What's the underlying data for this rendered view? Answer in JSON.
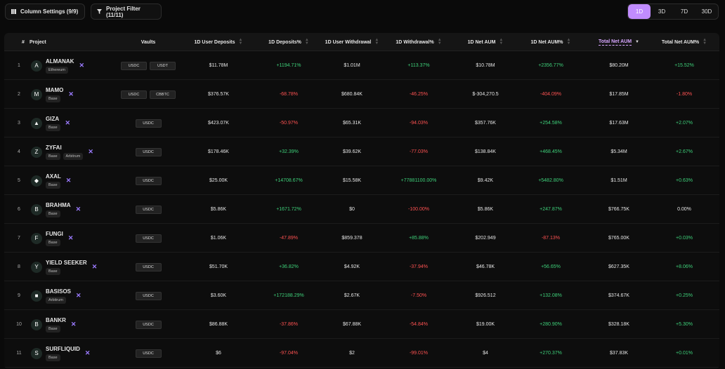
{
  "toolbar": {
    "column_settings_label": "Column Settings (9/9)",
    "project_filter_label": "Project Filter (11/11)"
  },
  "timeframes": [
    {
      "label": "1D",
      "active": true
    },
    {
      "label": "3D",
      "active": false
    },
    {
      "label": "7D",
      "active": false
    },
    {
      "label": "30D",
      "active": false
    }
  ],
  "columns": [
    "#",
    "Project",
    "Vaults",
    "1D User Deposits",
    "1D Deposits%",
    "1D User Withdrawal",
    "1D Withdrawal%",
    "1D Net AUM",
    "1D Net AUM%",
    "Total Net AUM",
    "Total Net AUM%"
  ],
  "rows": [
    {
      "n": "1",
      "name": "ALMANAK",
      "chains": [
        "Ethereum"
      ],
      "vaults": [
        "USDC",
        "USDT"
      ],
      "dep": "$11.78M",
      "depp": "+1194.71%",
      "wd": "$1.01M",
      "wdp": "+113.37%",
      "net": "$10.78M",
      "netp": "+2356.77%",
      "tot": "$80.20M",
      "totp": "+15.52%",
      "logo": "A"
    },
    {
      "n": "2",
      "name": "MAMO",
      "chains": [
        "Base"
      ],
      "vaults": [
        "USDC",
        "CBBTC"
      ],
      "dep": "$376.57K",
      "depp": "-68.78%",
      "wd": "$680.84K",
      "wdp": "-46.25%",
      "net": "$-304,270.5",
      "netp": "-404.09%",
      "tot": "$17.85M",
      "totp": "-1.80%",
      "logo": "M"
    },
    {
      "n": "3",
      "name": "GIZA",
      "chains": [
        "Base"
      ],
      "vaults": [
        "USDC"
      ],
      "dep": "$423.07K",
      "depp": "-50.97%",
      "wd": "$65.31K",
      "wdp": "-94.03%",
      "net": "$357.76K",
      "netp": "+254.58%",
      "tot": "$17.63M",
      "totp": "+2.07%",
      "logo": "▲"
    },
    {
      "n": "4",
      "name": "ZYFAI",
      "chains": [
        "Base",
        "Arbitrum"
      ],
      "vaults": [
        "USDC"
      ],
      "dep": "$178.46K",
      "depp": "+32.39%",
      "wd": "$39.62K",
      "wdp": "-77.03%",
      "net": "$138.84K",
      "netp": "+468.45%",
      "tot": "$5.34M",
      "totp": "+2.67%",
      "logo": "Z"
    },
    {
      "n": "5",
      "name": "AXAL",
      "chains": [
        "Base"
      ],
      "vaults": [
        "USDC"
      ],
      "dep": "$25.00K",
      "depp": "+14708.67%",
      "wd": "$15.58K",
      "wdp": "+77881100.00%",
      "net": "$9.42K",
      "netp": "+5482.80%",
      "tot": "$1.51M",
      "totp": "+0.63%",
      "logo": "◆"
    },
    {
      "n": "6",
      "name": "BRAHMA",
      "chains": [
        "Base"
      ],
      "vaults": [
        "USDC"
      ],
      "dep": "$5.86K",
      "depp": "+1671.72%",
      "wd": "$0",
      "wdp": "-100.00%",
      "net": "$5.86K",
      "netp": "+247.87%",
      "tot": "$766.75K",
      "totp": "0.00%",
      "logo": "B"
    },
    {
      "n": "7",
      "name": "FUNGI",
      "chains": [
        "Base"
      ],
      "vaults": [
        "USDC"
      ],
      "dep": "$1.06K",
      "depp": "-47.89%",
      "wd": "$859.378",
      "wdp": "+85.88%",
      "net": "$202.949",
      "netp": "-87.13%",
      "tot": "$765.00K",
      "totp": "+0.03%",
      "logo": "F"
    },
    {
      "n": "8",
      "name": "YIELD SEEKER",
      "chains": [
        "Base"
      ],
      "vaults": [
        "USDC"
      ],
      "dep": "$51.70K",
      "depp": "+36.82%",
      "wd": "$4.92K",
      "wdp": "-37.94%",
      "net": "$46.78K",
      "netp": "+56.65%",
      "tot": "$627.35K",
      "totp": "+8.06%",
      "logo": "Y"
    },
    {
      "n": "9",
      "name": "BASISOS",
      "chains": [
        "Arbitrum"
      ],
      "vaults": [
        "USDC"
      ],
      "dep": "$3.60K",
      "depp": "+172188.29%",
      "wd": "$2.67K",
      "wdp": "-7.50%",
      "net": "$926.512",
      "netp": "+132.08%",
      "tot": "$374.67K",
      "totp": "+0.25%",
      "logo": "■"
    },
    {
      "n": "10",
      "name": "BANKR",
      "chains": [
        "Base"
      ],
      "vaults": [
        "USDC"
      ],
      "dep": "$86.88K",
      "depp": "-37.86%",
      "wd": "$67.88K",
      "wdp": "-54.84%",
      "net": "$19.00K",
      "netp": "+280.90%",
      "tot": "$328.18K",
      "totp": "+5.30%",
      "logo": "B"
    },
    {
      "n": "11",
      "name": "SURFLIQUID",
      "chains": [
        "Base"
      ],
      "vaults": [
        "USDC"
      ],
      "dep": "$6",
      "depp": "-97.04%",
      "wd": "$2",
      "wdp": "-99.01%",
      "net": "$4",
      "netp": "+270.37%",
      "tot": "$37.83K",
      "totp": "+0.01%",
      "logo": "S"
    }
  ],
  "colors": {
    "accent": "#c18cff",
    "positive": "#3ed17a",
    "negative": "#ff5252"
  }
}
